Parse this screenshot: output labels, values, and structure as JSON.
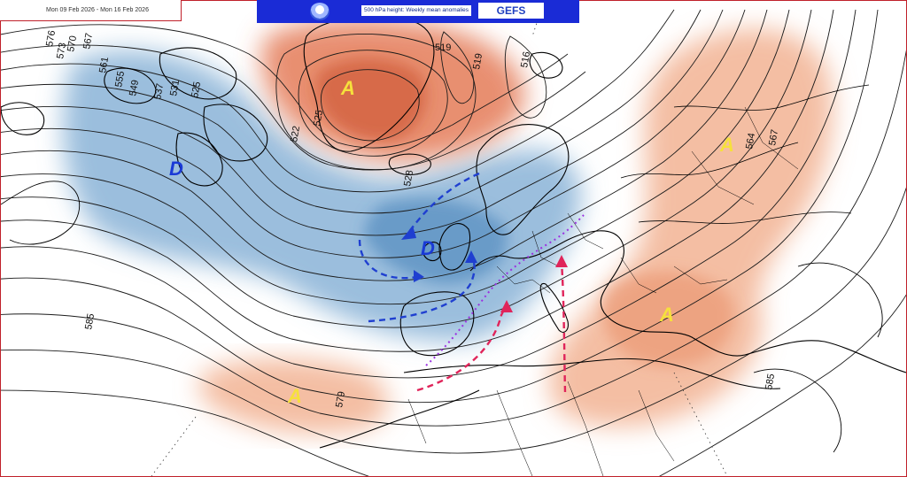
{
  "header": {
    "date_range": "Mon 09 Feb 2026 - Mon 16 Feb 2026",
    "title": "500 hPa height: Weekly mean anomalies",
    "model": "GEFS"
  },
  "pressure_systems": [
    {
      "id": "high-greenland",
      "label": "A",
      "type": "high"
    },
    {
      "id": "low-canada",
      "label": "D",
      "type": "low"
    },
    {
      "id": "low-uk",
      "label": "D",
      "type": "low"
    },
    {
      "id": "high-russia",
      "label": "A",
      "type": "high"
    },
    {
      "id": "high-mediterranean",
      "label": "A",
      "type": "high"
    },
    {
      "id": "high-azores",
      "label": "A",
      "type": "high"
    }
  ],
  "contour_labels": {
    "c576": "576",
    "c570": "570",
    "c573": "573",
    "c567": "567",
    "c561": "561",
    "c555": "555",
    "c549": "549",
    "c537": "537",
    "c531": "531",
    "c525a": "525",
    "c522": "522",
    "c525b": "525",
    "c528": "528",
    "c519a": "519",
    "c519b": "519",
    "c516": "516",
    "c564": "564",
    "c567b": "567",
    "c585a": "585",
    "c579": "579",
    "c585b": "585"
  },
  "colors": {
    "positive_anomaly": "#e8825a",
    "negative_anomaly": "#5b93c4",
    "cold_flow": "#1f3fd0",
    "warm_flow": "#e0245a",
    "boundary": "#9b30e0",
    "high_label": "#f6e03c",
    "low_label": "#1a3ad6"
  }
}
